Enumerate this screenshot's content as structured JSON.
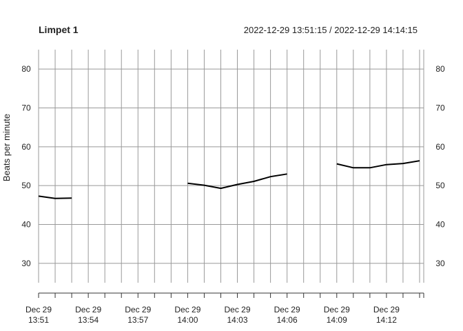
{
  "chart_data": {
    "type": "line",
    "title": "Limpet 1",
    "time_range_label": "2022-12-29 13:51:15 / 2022-12-29 14:14:15",
    "ylabel": "Beats per minute",
    "xlabel": "",
    "xlim": [
      "2022-12-29 13:51:00",
      "2022-12-29 14:14:15"
    ],
    "ylim": [
      25,
      85
    ],
    "y_ticks": [
      30,
      40,
      50,
      60,
      70,
      80
    ],
    "x_tick_labels": [
      {
        "time": "2022-12-29 13:51:00",
        "line1": "Dec 29",
        "line2": "13:51"
      },
      {
        "time": "2022-12-29 13:54:00",
        "line1": "Dec 29",
        "line2": "13:54"
      },
      {
        "time": "2022-12-29 13:57:00",
        "line1": "Dec 29",
        "line2": "13:57"
      },
      {
        "time": "2022-12-29 14:00:00",
        "line1": "Dec 29",
        "line2": "14:00"
      },
      {
        "time": "2022-12-29 14:03:00",
        "line1": "Dec 29",
        "line2": "14:03"
      },
      {
        "time": "2022-12-29 14:06:00",
        "line1": "Dec 29",
        "line2": "14:06"
      },
      {
        "time": "2022-12-29 14:09:00",
        "line1": "Dec 29",
        "line2": "14:09"
      },
      {
        "time": "2022-12-29 14:12:00",
        "line1": "Dec 29",
        "line2": "14:12"
      }
    ],
    "grid": {
      "vertical_every_minutes": 1,
      "horizontal_at_ticks": true
    },
    "line_color": "#000000",
    "grid_color": "#999999",
    "segments": [
      {
        "points": [
          {
            "t": "2022-12-29 13:51:00",
            "y": 47.3
          },
          {
            "t": "2022-12-29 13:52:00",
            "y": 46.7
          },
          {
            "t": "2022-12-29 13:53:00",
            "y": 46.8
          }
        ]
      },
      {
        "points": [
          {
            "t": "2022-12-29 14:00:00",
            "y": 50.6
          },
          {
            "t": "2022-12-29 14:01:00",
            "y": 50.1
          },
          {
            "t": "2022-12-29 14:02:00",
            "y": 49.3
          },
          {
            "t": "2022-12-29 14:03:00",
            "y": 50.3
          },
          {
            "t": "2022-12-29 14:04:00",
            "y": 51.1
          },
          {
            "t": "2022-12-29 14:05:00",
            "y": 52.3
          },
          {
            "t": "2022-12-29 14:06:00",
            "y": 53.0
          }
        ]
      },
      {
        "points": [
          {
            "t": "2022-12-29 14:09:00",
            "y": 55.6
          },
          {
            "t": "2022-12-29 14:10:00",
            "y": 54.6
          },
          {
            "t": "2022-12-29 14:11:00",
            "y": 54.6
          },
          {
            "t": "2022-12-29 14:12:00",
            "y": 55.4
          },
          {
            "t": "2022-12-29 14:13:00",
            "y": 55.7
          },
          {
            "t": "2022-12-29 14:14:00",
            "y": 56.4
          }
        ]
      }
    ]
  }
}
